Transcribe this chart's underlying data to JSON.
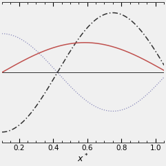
{
  "xlabel": "x*",
  "xlim": [
    0.1,
    1.05
  ],
  "ylim": [
    -0.52,
    0.52
  ],
  "xticks": [
    0.2,
    0.4,
    0.6,
    0.8,
    1.0
  ],
  "background_color": "#f0f0f0",
  "line_solid_color": "#c0504d",
  "line_dotted_color": "#8888bb",
  "line_dashdot_color": "#303030",
  "hline_color": "#303030",
  "hline_y": 0.0,
  "dashdot_A": 0.44,
  "dashdot_phase": -1.05,
  "dashdot_period": 0.97,
  "dotted_A": -0.3,
  "dotted_phase": -1.05,
  "dotted_period": 0.97,
  "solid_A": 0.22,
  "solid_phase": 0.0,
  "solid_period": 0.97
}
